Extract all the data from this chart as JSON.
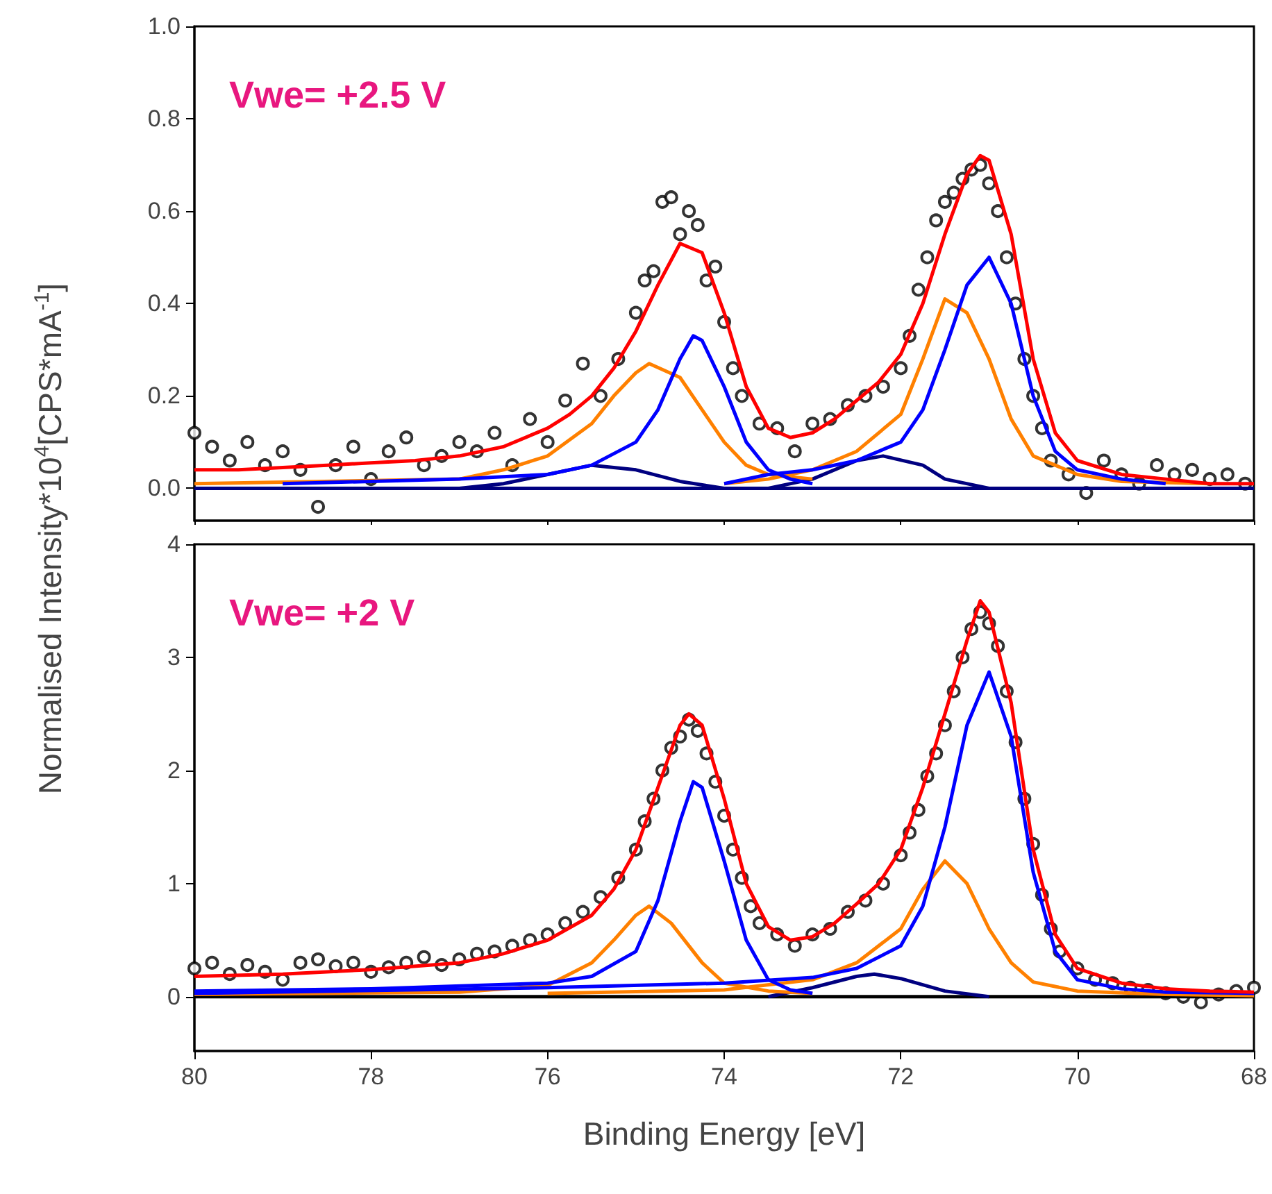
{
  "chart_data": [
    {
      "type": "line",
      "ylabel": "Normalised Intensity*10$^{4}$[CPS*mA$^{-1}$]",
      "annotations": [
        "Vwe= +2.5 V"
      ],
      "xlim": [
        80,
        68
      ],
      "xticks": [
        80,
        78,
        76,
        74,
        72,
        70,
        68
      ],
      "ylim": [
        -0.07,
        1.0
      ],
      "yticks": [
        {
          "value": 0,
          "label": "0.0"
        },
        {
          "value": 0.2,
          "label": "0.2"
        },
        {
          "value": 0.4,
          "label": "0.4"
        },
        {
          "value": 0.6,
          "label": "0.6"
        },
        {
          "value": 0.8,
          "label": "0.8"
        },
        {
          "value": 1.0,
          "label": "1.0"
        }
      ],
      "tick_labels": "y",
      "series": [
        {
          "type": "scatter",
          "marker": "circle",
          "color": "#000000",
          "x": [
            80,
            79.8,
            79.6,
            79.4,
            79.2,
            79,
            78.8,
            78.6,
            78.4,
            78.2,
            78,
            77.8,
            77.6,
            77.4,
            77.2,
            77,
            76.8,
            76.6,
            76.4,
            76.2,
            76,
            75.8,
            75.6,
            75.4,
            75.2,
            75,
            74.9,
            74.8,
            74.7,
            74.6,
            74.5,
            74.4,
            74.3,
            74.2,
            74.1,
            74,
            73.9,
            73.8,
            73.6,
            73.4,
            73.2,
            73,
            72.8,
            72.6,
            72.4,
            72.2,
            72,
            71.9,
            71.8,
            71.7,
            71.6,
            71.5,
            71.4,
            71.3,
            71.2,
            71.1,
            71,
            70.9,
            70.8,
            70.7,
            70.6,
            70.5,
            70.4,
            70.3,
            70.1,
            69.9,
            69.7,
            69.5,
            69.3,
            69.1,
            68.9,
            68.7,
            68.5,
            68.3,
            68.1
          ],
          "values": [
            0.12,
            0.09,
            0.06,
            0.1,
            0.05,
            0.08,
            0.04,
            -0.04,
            0.05,
            0.09,
            0.02,
            0.08,
            0.11,
            0.05,
            0.07,
            0.1,
            0.08,
            0.12,
            0.05,
            0.15,
            0.1,
            0.19,
            0.27,
            0.2,
            0.28,
            0.38,
            0.45,
            0.47,
            0.62,
            0.63,
            0.55,
            0.6,
            0.57,
            0.45,
            0.48,
            0.36,
            0.26,
            0.2,
            0.14,
            0.13,
            0.08,
            0.14,
            0.15,
            0.18,
            0.2,
            0.22,
            0.26,
            0.33,
            0.43,
            0.5,
            0.58,
            0.62,
            0.64,
            0.67,
            0.69,
            0.7,
            0.66,
            0.6,
            0.5,
            0.4,
            0.28,
            0.2,
            0.13,
            0.06,
            0.03,
            -0.01,
            0.06,
            0.03,
            0.01,
            0.05,
            0.03,
            0.04,
            0.02,
            0.03,
            0.01
          ]
        },
        {
          "color": "#000080",
          "x": [
            80,
            68
          ],
          "values": [
            0,
            0
          ]
        },
        {
          "color": "#000080",
          "x": [
            77,
            76.5,
            76,
            75.5,
            75,
            74.5,
            74
          ],
          "values": [
            0,
            0.01,
            0.03,
            0.05,
            0.04,
            0.015,
            0
          ]
        },
        {
          "color": "#000080",
          "x": [
            73.5,
            73,
            72.5,
            72.2,
            71.75,
            71.5,
            71
          ],
          "values": [
            0,
            0.02,
            0.06,
            0.07,
            0.05,
            0.02,
            0
          ]
        },
        {
          "color": "#ff8000",
          "x": [
            80,
            77,
            76.5,
            76,
            75.5,
            75.25,
            75,
            74.85,
            74.5,
            74.25,
            74,
            73.75,
            73.5,
            73
          ],
          "values": [
            0.01,
            0.02,
            0.04,
            0.07,
            0.14,
            0.2,
            0.25,
            0.27,
            0.24,
            0.17,
            0.1,
            0.05,
            0.03,
            0.02
          ]
        },
        {
          "color": "#ff8000",
          "x": [
            74,
            73.5,
            73,
            72.5,
            72,
            71.75,
            71.5,
            71.25,
            71,
            70.75,
            70.5,
            70,
            69.5,
            68.5
          ],
          "values": [
            0.01,
            0.02,
            0.04,
            0.08,
            0.16,
            0.28,
            0.41,
            0.38,
            0.28,
            0.15,
            0.07,
            0.03,
            0.015,
            0.01
          ]
        },
        {
          "color": "#0000ff",
          "x": [
            79,
            77,
            76,
            75.5,
            75,
            74.75,
            74.5,
            74.35,
            74.25,
            74,
            73.75,
            73.5,
            73.25,
            73
          ],
          "values": [
            0.01,
            0.02,
            0.03,
            0.05,
            0.1,
            0.17,
            0.28,
            0.33,
            0.32,
            0.22,
            0.1,
            0.04,
            0.02,
            0.01
          ]
        },
        {
          "color": "#0000ff",
          "x": [
            74,
            73.5,
            73,
            72.5,
            72,
            71.75,
            71.5,
            71.25,
            71,
            70.75,
            70.5,
            70.25,
            70,
            69.5,
            69
          ],
          "values": [
            0.01,
            0.03,
            0.04,
            0.06,
            0.1,
            0.17,
            0.3,
            0.44,
            0.5,
            0.4,
            0.2,
            0.08,
            0.04,
            0.02,
            0.01
          ]
        },
        {
          "color": "#ff0000",
          "x": [
            80,
            79.5,
            79,
            78.5,
            78,
            77.5,
            77,
            76.5,
            76,
            75.75,
            75.5,
            75.25,
            75,
            74.75,
            74.5,
            74.25,
            74,
            73.75,
            73.5,
            73.25,
            73,
            72.75,
            72.5,
            72.25,
            72,
            71.75,
            71.5,
            71.25,
            71.1,
            71,
            70.75,
            70.5,
            70.25,
            70,
            69.5,
            69,
            68.5,
            68
          ],
          "values": [
            0.04,
            0.04,
            0.045,
            0.05,
            0.055,
            0.06,
            0.07,
            0.09,
            0.13,
            0.16,
            0.2,
            0.26,
            0.34,
            0.44,
            0.53,
            0.51,
            0.38,
            0.22,
            0.13,
            0.11,
            0.12,
            0.15,
            0.19,
            0.23,
            0.29,
            0.4,
            0.55,
            0.68,
            0.72,
            0.71,
            0.55,
            0.28,
            0.12,
            0.06,
            0.03,
            0.02,
            0.01,
            0.01
          ]
        }
      ]
    },
    {
      "type": "line",
      "xlabel": "Binding Energy [eV]",
      "annotations": [
        "Vwe= +2 V"
      ],
      "xlim": [
        80,
        68
      ],
      "xticks": [
        80,
        78,
        76,
        74,
        72,
        70,
        68
      ],
      "ylim": [
        -0.48,
        4
      ],
      "yticks": [
        0,
        1,
        2,
        3,
        4
      ],
      "series": [
        {
          "type": "scatter",
          "marker": "circle",
          "color": "#000000",
          "x": [
            80,
            79.8,
            79.6,
            79.4,
            79.2,
            79,
            78.8,
            78.6,
            78.4,
            78.2,
            78,
            77.8,
            77.6,
            77.4,
            77.2,
            77,
            76.8,
            76.6,
            76.4,
            76.2,
            76,
            75.8,
            75.6,
            75.4,
            75.2,
            75,
            74.9,
            74.8,
            74.7,
            74.6,
            74.5,
            74.4,
            74.3,
            74.2,
            74.1,
            74,
            73.9,
            73.8,
            73.7,
            73.6,
            73.4,
            73.2,
            73,
            72.8,
            72.6,
            72.4,
            72.2,
            72,
            71.9,
            71.8,
            71.7,
            71.6,
            71.5,
            71.4,
            71.3,
            71.2,
            71.1,
            71,
            70.9,
            70.8,
            70.7,
            70.6,
            70.5,
            70.4,
            70.3,
            70.2,
            70,
            69.8,
            69.6,
            69.4,
            69.2,
            69,
            68.8,
            68.6,
            68.4,
            68.2,
            68
          ],
          "values": [
            0.25,
            0.3,
            0.2,
            0.28,
            0.22,
            0.15,
            0.3,
            0.33,
            0.27,
            0.3,
            0.22,
            0.26,
            0.3,
            0.35,
            0.28,
            0.33,
            0.38,
            0.4,
            0.45,
            0.5,
            0.55,
            0.65,
            0.75,
            0.88,
            1.05,
            1.3,
            1.55,
            1.75,
            2.0,
            2.2,
            2.3,
            2.45,
            2.35,
            2.15,
            1.9,
            1.6,
            1.3,
            1.05,
            0.8,
            0.65,
            0.55,
            0.45,
            0.55,
            0.6,
            0.75,
            0.85,
            1.0,
            1.25,
            1.45,
            1.65,
            1.95,
            2.15,
            2.4,
            2.7,
            3.0,
            3.25,
            3.4,
            3.3,
            3.1,
            2.7,
            2.25,
            1.75,
            1.35,
            0.9,
            0.6,
            0.4,
            0.25,
            0.15,
            0.12,
            0.08,
            0.06,
            0.03,
            0,
            -0.05,
            0.02,
            0.05,
            0.08
          ]
        },
        {
          "color": "#000000",
          "x": [
            80,
            68
          ],
          "values": [
            0,
            0
          ]
        },
        {
          "color": "#000080",
          "x": [
            73.5,
            73,
            72.5,
            72.3,
            72,
            71.5,
            71
          ],
          "values": [
            0,
            0.08,
            0.18,
            0.2,
            0.16,
            0.05,
            0
          ]
        },
        {
          "color": "#ff8000",
          "x": [
            80,
            77,
            76,
            75.5,
            75.25,
            75,
            74.85,
            74.6,
            74.25,
            74,
            73.5,
            73
          ],
          "values": [
            0.02,
            0.04,
            0.1,
            0.3,
            0.5,
            0.72,
            0.8,
            0.65,
            0.3,
            0.12,
            0.05,
            0.03
          ]
        },
        {
          "color": "#ff8000",
          "x": [
            76,
            74,
            73,
            72.5,
            72,
            71.75,
            71.5,
            71.25,
            71,
            70.75,
            70.5,
            70,
            69,
            68
          ],
          "values": [
            0.03,
            0.06,
            0.15,
            0.3,
            0.6,
            0.95,
            1.2,
            1.0,
            0.6,
            0.3,
            0.13,
            0.05,
            0.02,
            0.01
          ]
        },
        {
          "color": "#0000ff",
          "x": [
            80,
            78,
            76,
            75.5,
            75,
            74.75,
            74.5,
            74.35,
            74.25,
            74,
            73.75,
            73.5,
            73.25,
            73
          ],
          "values": [
            0.05,
            0.07,
            0.12,
            0.18,
            0.4,
            0.85,
            1.55,
            1.9,
            1.85,
            1.2,
            0.5,
            0.15,
            0.06,
            0.03
          ]
        },
        {
          "color": "#0000ff",
          "x": [
            80,
            76,
            74,
            73,
            72.5,
            72,
            71.75,
            71.5,
            71.25,
            71,
            70.75,
            70.5,
            70.25,
            70,
            69.5,
            69,
            68
          ],
          "values": [
            0.03,
            0.08,
            0.12,
            0.17,
            0.25,
            0.45,
            0.8,
            1.5,
            2.4,
            2.87,
            2.3,
            1.1,
            0.4,
            0.15,
            0.07,
            0.04,
            0.03
          ]
        },
        {
          "color": "#ff0000",
          "x": [
            80,
            79,
            78,
            77,
            76.5,
            76,
            75.5,
            75.25,
            75,
            74.75,
            74.5,
            74.4,
            74.25,
            74,
            73.75,
            73.5,
            73.25,
            73,
            72.75,
            72.5,
            72.25,
            72,
            71.75,
            71.5,
            71.25,
            71.1,
            71,
            70.75,
            70.5,
            70.25,
            70,
            69.5,
            69,
            68.5,
            68
          ],
          "values": [
            0.18,
            0.2,
            0.24,
            0.3,
            0.38,
            0.5,
            0.72,
            0.95,
            1.3,
            1.85,
            2.4,
            2.5,
            2.4,
            1.75,
            1.0,
            0.62,
            0.5,
            0.53,
            0.65,
            0.82,
            1.0,
            1.3,
            1.85,
            2.5,
            3.15,
            3.5,
            3.4,
            2.6,
            1.3,
            0.55,
            0.25,
            0.12,
            0.07,
            0.05,
            0.04
          ]
        }
      ]
    }
  ]
}
